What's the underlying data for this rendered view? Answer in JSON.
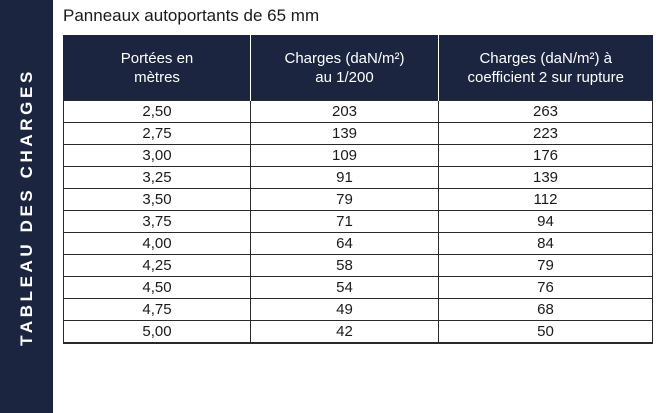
{
  "side_label": "TABLEAU DES CHARGES",
  "caption": "Panneaux autoportants de 65 mm",
  "headers": [
    {
      "line1": "Portées en",
      "line2": "mètres"
    },
    {
      "line1": "Charges (daN/m²)",
      "line2": "au 1/200"
    },
    {
      "line1": "Charges (daN/m²) à",
      "line2": "coefficient 2 sur rupture"
    }
  ],
  "rows": [
    [
      "2,50",
      "203",
      "263"
    ],
    [
      "2,75",
      "139",
      "223"
    ],
    [
      "3,00",
      "109",
      "176"
    ],
    [
      "3,25",
      "91",
      "139"
    ],
    [
      "3,50",
      "79",
      "112"
    ],
    [
      "3,75",
      "71",
      "94"
    ],
    [
      "4,00",
      "64",
      "84"
    ],
    [
      "4,25",
      "58",
      "79"
    ],
    [
      "4,50",
      "54",
      "76"
    ],
    [
      "4,75",
      "49",
      "68"
    ],
    [
      "5,00",
      "42",
      "50"
    ]
  ],
  "colors": {
    "navy": "#1b2540",
    "text": "#1a1a1a",
    "header_text": "#ffffff"
  }
}
